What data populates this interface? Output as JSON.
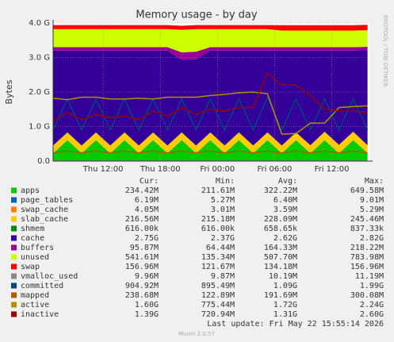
{
  "chart_data": {
    "type": "area",
    "title": "Memory usage - by day",
    "ylabel": "Bytes",
    "side_label": "RRDTOOL / TOBI OETIKER",
    "x": [
      0,
      1.5,
      3,
      4.5,
      6,
      7.5,
      9,
      10.5,
      12,
      13.5,
      15,
      16.5,
      18,
      19.5,
      21,
      22.5,
      24,
      25.5,
      27,
      28.5,
      30,
      31.5,
      33
    ],
    "xlim": [
      0,
      33.2
    ],
    "xticks": [
      {
        "value": 5.25,
        "label": "Thu 12:00"
      },
      {
        "value": 11.25,
        "label": "Thu 18:00"
      },
      {
        "value": 17.25,
        "label": "Fri 00:00"
      },
      {
        "value": 23.25,
        "label": "Fri 06:00"
      },
      {
        "value": 29.25,
        "label": "Fri 12:00"
      }
    ],
    "ylim": [
      0,
      4
    ],
    "yticks": [
      {
        "value": 0,
        "label": "0.0"
      },
      {
        "value": 1,
        "label": "1.0 G"
      },
      {
        "value": 2,
        "label": "2.0 G"
      },
      {
        "value": 3,
        "label": "3.0 G"
      },
      {
        "value": 4,
        "label": "4.0 G"
      }
    ],
    "grid": true,
    "legend_columns": [
      "Cur:",
      "Min:",
      "Avg:",
      "Max:"
    ],
    "series": [
      {
        "name": "apps",
        "color": "#00cc00",
        "stacked": true,
        "stats": [
          "234.42M",
          "211.61M",
          "322.22M",
          "649.58M"
        ],
        "values": [
          0.22,
          0.6,
          0.22,
          0.6,
          0.22,
          0.6,
          0.22,
          0.6,
          0.22,
          0.6,
          0.22,
          0.6,
          0.22,
          0.6,
          0.22,
          0.6,
          0.22,
          0.6,
          0.22,
          0.6,
          0.22,
          0.6,
          0.23
        ]
      },
      {
        "name": "page_tables",
        "color": "#0066b3",
        "stacked": true,
        "stats": [
          "6.19M",
          "5.27M",
          "6.40M",
          "9.01M"
        ],
        "values": [
          0.006,
          0.006,
          0.006,
          0.006,
          0.006,
          0.006,
          0.006,
          0.006,
          0.006,
          0.006,
          0.006,
          0.006,
          0.006,
          0.006,
          0.006,
          0.006,
          0.006,
          0.006,
          0.006,
          0.006,
          0.006,
          0.006,
          0.006
        ]
      },
      {
        "name": "swap_cache",
        "color": "#ff8000",
        "stacked": true,
        "stats": [
          "4.05M",
          "3.01M",
          "3.59M",
          "5.29M"
        ],
        "values": [
          0.004,
          0.004,
          0.004,
          0.004,
          0.004,
          0.004,
          0.004,
          0.004,
          0.004,
          0.004,
          0.004,
          0.004,
          0.004,
          0.004,
          0.004,
          0.004,
          0.004,
          0.004,
          0.004,
          0.004,
          0.004,
          0.004,
          0.004
        ]
      },
      {
        "name": "slab_cache",
        "color": "#ffcc00",
        "stacked": true,
        "stats": [
          "216.56M",
          "215.18M",
          "228.09M",
          "245.46M"
        ],
        "values": [
          0.22,
          0.22,
          0.22,
          0.22,
          0.22,
          0.22,
          0.22,
          0.22,
          0.22,
          0.22,
          0.22,
          0.22,
          0.22,
          0.22,
          0.22,
          0.22,
          0.22,
          0.22,
          0.23,
          0.24,
          0.24,
          0.24,
          0.22
        ]
      },
      {
        "name": "shmem",
        "color": "#008f00",
        "stacked": true,
        "stats": [
          "616.00k",
          "616.00k",
          "658.65k",
          "837.33k"
        ],
        "values": [
          0.0006,
          0.0006,
          0.0006,
          0.0006,
          0.0006,
          0.0006,
          0.0006,
          0.0006,
          0.0006,
          0.0006,
          0.0006,
          0.0006,
          0.0006,
          0.0006,
          0.0006,
          0.0006,
          0.0006,
          0.0006,
          0.0006,
          0.0006,
          0.0006,
          0.0006,
          0.0006
        ]
      },
      {
        "name": "cache",
        "color": "#330099",
        "stacked": true,
        "stats": [
          "2.75G",
          "2.37G",
          "2.62G",
          "2.82G"
        ],
        "values": [
          2.75,
          2.37,
          2.75,
          2.37,
          2.75,
          2.37,
          2.75,
          2.37,
          2.75,
          2.1,
          2.5,
          2.37,
          2.75,
          2.37,
          2.75,
          2.37,
          2.75,
          2.37,
          2.74,
          2.35,
          2.73,
          2.35,
          2.75
        ]
      },
      {
        "name": "buffers",
        "color": "#990099",
        "stacked": true,
        "stats": [
          "95.87M",
          "64.44M",
          "164.33M",
          "218.22M"
        ],
        "values": [
          0.1,
          0.1,
          0.1,
          0.1,
          0.1,
          0.1,
          0.1,
          0.1,
          0.1,
          0.22,
          0.22,
          0.1,
          0.1,
          0.1,
          0.1,
          0.1,
          0.1,
          0.1,
          0.1,
          0.1,
          0.1,
          0.1,
          0.1
        ]
      },
      {
        "name": "unused",
        "color": "#ccff00",
        "stacked": true,
        "stats": [
          "541.61M",
          "135.34M",
          "507.70M",
          "783.98M"
        ],
        "values": [
          0.52,
          0.52,
          0.52,
          0.52,
          0.52,
          0.52,
          0.52,
          0.52,
          0.52,
          0.65,
          0.65,
          0.52,
          0.52,
          0.52,
          0.52,
          0.52,
          0.48,
          0.48,
          0.48,
          0.48,
          0.48,
          0.48,
          0.48
        ]
      },
      {
        "name": "swap",
        "color": "#ff0000",
        "stacked": true,
        "stats": [
          "156.96M",
          "121.67M",
          "134.18M",
          "156.96M"
        ],
        "values": [
          0.12,
          0.12,
          0.12,
          0.12,
          0.12,
          0.12,
          0.12,
          0.12,
          0.12,
          0.12,
          0.12,
          0.12,
          0.12,
          0.12,
          0.12,
          0.12,
          0.157,
          0.157,
          0.157,
          0.157,
          0.157,
          0.157,
          0.157
        ]
      },
      {
        "name": "vmalloc_used",
        "color": "#888888",
        "stacked": false,
        "stats": [
          "9.96M",
          "9.87M",
          "10.19M",
          "11.19M"
        ],
        "values": [
          0.01,
          0.01,
          0.01,
          0.01,
          0.01,
          0.01,
          0.01,
          0.01,
          0.01,
          0.01,
          0.01,
          0.01,
          0.01,
          0.01,
          0.01,
          0.01,
          0.01,
          0.01,
          0.01,
          0.01,
          0.01,
          0.01,
          0.01
        ]
      },
      {
        "name": "committed",
        "color": "#00487d",
        "stacked": false,
        "stats": [
          "904.92M",
          "895.49M",
          "1.09G",
          "1.99G"
        ],
        "values": [
          0.9,
          1.8,
          0.9,
          1.8,
          0.9,
          1.8,
          0.9,
          1.8,
          0.9,
          1.8,
          0.9,
          1.8,
          0.9,
          1.8,
          0.9,
          1.85,
          0.9,
          1.8,
          0.9,
          1.8,
          0.9,
          1.8,
          0.9
        ]
      },
      {
        "name": "mapped",
        "color": "#b35a00",
        "stacked": false,
        "stats": [
          "238.68M",
          "122.89M",
          "191.69M",
          "300.08M"
        ],
        "values": [
          0.24,
          0.29,
          0.24,
          0.29,
          0.24,
          0.29,
          0.24,
          0.29,
          0.24,
          0.29,
          0.24,
          0.29,
          0.24,
          0.29,
          0.24,
          0.29,
          0.24,
          0.29,
          0.24,
          0.29,
          0.24,
          0.29,
          0.24
        ]
      },
      {
        "name": "active",
        "color": "#b38f00",
        "stacked": false,
        "stats": [
          "1.60G",
          "775.44M",
          "1.72G",
          "2.24G"
        ],
        "values": [
          1.82,
          1.78,
          1.85,
          1.85,
          1.8,
          1.8,
          1.82,
          1.8,
          1.85,
          1.85,
          1.85,
          1.9,
          1.93,
          1.98,
          2.0,
          1.95,
          0.78,
          0.8,
          1.1,
          1.1,
          1.55,
          1.58,
          1.6
        ]
      },
      {
        "name": "inactive",
        "color": "#990000",
        "stacked": false,
        "stats": [
          "1.39G",
          "720.94M",
          "1.31G",
          "2.60G"
        ],
        "values": [
          1.15,
          1.4,
          1.2,
          1.35,
          1.25,
          1.3,
          1.2,
          1.45,
          1.3,
          1.55,
          1.35,
          1.5,
          1.45,
          1.55,
          1.55,
          2.55,
          2.2,
          2.2,
          1.9,
          1.5,
          1.45,
          1.45,
          1.4
        ]
      }
    ],
    "footer": "Last update: Fri May 22 15:55:14 2026",
    "version": "Munin 2.0.57"
  }
}
